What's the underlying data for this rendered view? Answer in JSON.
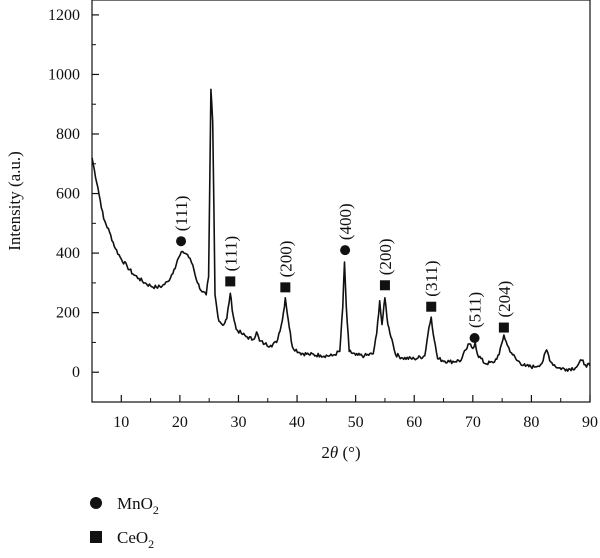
{
  "chart_data": {
    "type": "line",
    "xlabel_prefix": "2",
    "xlabel_theta": "θ",
    "xlabel_suffix": " (°)",
    "ylabel": "Intensity (a.u.)",
    "xlim": [
      5,
      90
    ],
    "ylim": [
      -100,
      1250
    ],
    "x_ticks": [
      "10",
      "20",
      "30",
      "40",
      "50",
      "60",
      "70",
      "80",
      "90"
    ],
    "y_ticks": [
      "0",
      "200",
      "400",
      "600",
      "800",
      "1000",
      "1200"
    ],
    "grid": false,
    "series": [
      {
        "color": "#111111",
        "points": [
          [
            5,
            720
          ],
          [
            6,
            620
          ],
          [
            7,
            515
          ],
          [
            8,
            470
          ],
          [
            9,
            415
          ],
          [
            10,
            380
          ],
          [
            11,
            355
          ],
          [
            12,
            330
          ],
          [
            13,
            315
          ],
          [
            14,
            300
          ],
          [
            15,
            290
          ],
          [
            16,
            285
          ],
          [
            17,
            290
          ],
          [
            18,
            305
          ],
          [
            19,
            345
          ],
          [
            19.8,
            385
          ],
          [
            20.5,
            405
          ],
          [
            21.3,
            395
          ],
          [
            22.2,
            360
          ],
          [
            23,
            300
          ],
          [
            23.8,
            270
          ],
          [
            24.5,
            260
          ],
          [
            24.9,
            320
          ],
          [
            25.3,
            950
          ],
          [
            25.6,
            840
          ],
          [
            26.0,
            260
          ],
          [
            26.5,
            185
          ],
          [
            27,
            165
          ],
          [
            27.5,
            160
          ],
          [
            28.0,
            180
          ],
          [
            28.6,
            265
          ],
          [
            29.1,
            190
          ],
          [
            29.6,
            145
          ],
          [
            30.5,
            130
          ],
          [
            31.5,
            118
          ],
          [
            32.5,
            110
          ],
          [
            33.1,
            135
          ],
          [
            33.6,
            105
          ],
          [
            34.5,
            95
          ],
          [
            35.5,
            90
          ],
          [
            36.5,
            100
          ],
          [
            37.5,
            175
          ],
          [
            38.0,
            250
          ],
          [
            38.5,
            175
          ],
          [
            39.2,
            85
          ],
          [
            40.5,
            65
          ],
          [
            42,
            60
          ],
          [
            44,
            57
          ],
          [
            46,
            55
          ],
          [
            47.3,
            70
          ],
          [
            47.8,
            220
          ],
          [
            48.1,
            370
          ],
          [
            48.4,
            220
          ],
          [
            48.9,
            70
          ],
          [
            50,
            57
          ],
          [
            51.5,
            55
          ],
          [
            53,
            62
          ],
          [
            53.6,
            130
          ],
          [
            54.1,
            240
          ],
          [
            54.5,
            160
          ],
          [
            55.0,
            250
          ],
          [
            55.5,
            160
          ],
          [
            56.2,
            110
          ],
          [
            56.8,
            60
          ],
          [
            58,
            48
          ],
          [
            60,
            45
          ],
          [
            61.8,
            55
          ],
          [
            62.5,
            150
          ],
          [
            62.9,
            185
          ],
          [
            63.4,
            110
          ],
          [
            64,
            45
          ],
          [
            66,
            35
          ],
          [
            68,
            40
          ],
          [
            68.8,
            75
          ],
          [
            69.4,
            95
          ],
          [
            70.0,
            80
          ],
          [
            70.4,
            100
          ],
          [
            70.8,
            60
          ],
          [
            72,
            30
          ],
          [
            73.5,
            32
          ],
          [
            74.5,
            60
          ],
          [
            75.3,
            125
          ],
          [
            75.9,
            90
          ],
          [
            76.6,
            65
          ],
          [
            77.5,
            40
          ],
          [
            79,
            20
          ],
          [
            80.5,
            18
          ],
          [
            81.8,
            30
          ],
          [
            82.6,
            75
          ],
          [
            83.3,
            35
          ],
          [
            84.5,
            15
          ],
          [
            86,
            10
          ],
          [
            87.5,
            15
          ],
          [
            88.6,
            40
          ],
          [
            89.2,
            25
          ],
          [
            90,
            22
          ]
        ]
      }
    ],
    "peak_labels": [
      {
        "text": "(111)",
        "x": 20.2,
        "y": 440,
        "marker": "circle"
      },
      {
        "text": "(111)",
        "x": 28.6,
        "y": 305,
        "marker": "square"
      },
      {
        "text": "(200)",
        "x": 38.0,
        "y": 285,
        "marker": "square"
      },
      {
        "text": "(400)",
        "x": 48.2,
        "y": 410,
        "marker": "circle"
      },
      {
        "text": "(200)",
        "x": 55.0,
        "y": 292,
        "marker": "square"
      },
      {
        "text": "(311)",
        "x": 62.9,
        "y": 220,
        "marker": "square"
      },
      {
        "text": "(511)",
        "x": 70.3,
        "y": 115,
        "marker": "circle"
      },
      {
        "text": "(204)",
        "x": 75.3,
        "y": 150,
        "marker": "square"
      }
    ],
    "legend": [
      {
        "marker": "circle",
        "name": "MnO",
        "sub": "2"
      },
      {
        "marker": "square",
        "name": "CeO",
        "sub": "2"
      }
    ]
  }
}
